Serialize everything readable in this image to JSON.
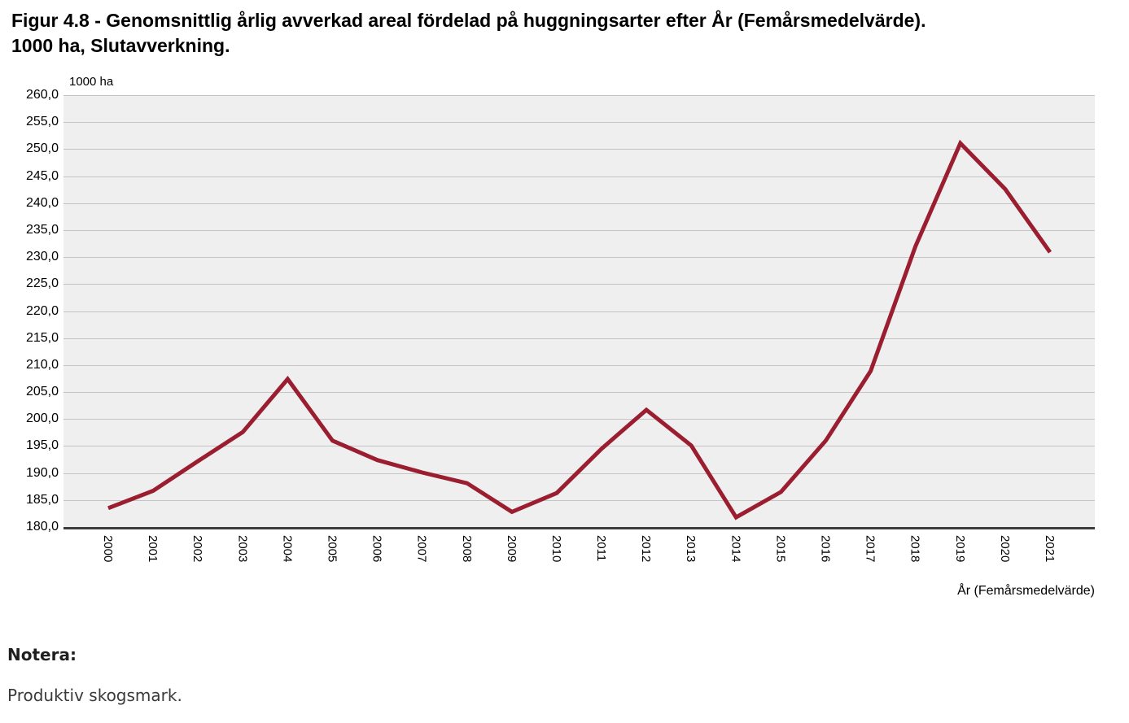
{
  "chart_data": {
    "type": "line",
    "title": "Figur 4.8 - Genomsnittlig årlig avverkad areal fördelad på huggningsarter efter År (Femårsmedelvärde). 1000 ha, Slutavverkning.",
    "series_name": "Slutavverkning",
    "unit_label": "1000 ha",
    "xlabel": "År (Femårsmedelvärde)",
    "categories": [
      "2000",
      "2001",
      "2002",
      "2003",
      "2004",
      "2005",
      "2006",
      "2007",
      "2008",
      "2009",
      "2010",
      "2011",
      "2012",
      "2013",
      "2014",
      "2015",
      "2016",
      "2017",
      "2018",
      "2019",
      "2020",
      "2021"
    ],
    "values": [
      183.5,
      186.7,
      192.2,
      197.6,
      207.4,
      196.0,
      192.4,
      190.1,
      188.1,
      182.8,
      186.3,
      194.5,
      201.7,
      195.1,
      181.8,
      186.5,
      196.0,
      208.9,
      232.0,
      251.1,
      242.6,
      230.9
    ],
    "ylim": [
      180,
      260
    ],
    "ytick_step": 5,
    "yticks": [
      "260,0",
      "255,0",
      "250,0",
      "245,0",
      "240,0",
      "235,0",
      "230,0",
      "225,0",
      "220,0",
      "215,0",
      "210,0",
      "205,0",
      "200,0",
      "195,0",
      "190,0",
      "185,0",
      "180,0"
    ],
    "grid": true,
    "legend": false,
    "colors": {
      "line": "#9a1e30",
      "plot_bg": "#efefef",
      "grid": "#c5c5c5",
      "axis": "#3d3d3d"
    }
  },
  "notes": {
    "heading": "Notera:",
    "body": "Produktiv skogsmark."
  }
}
